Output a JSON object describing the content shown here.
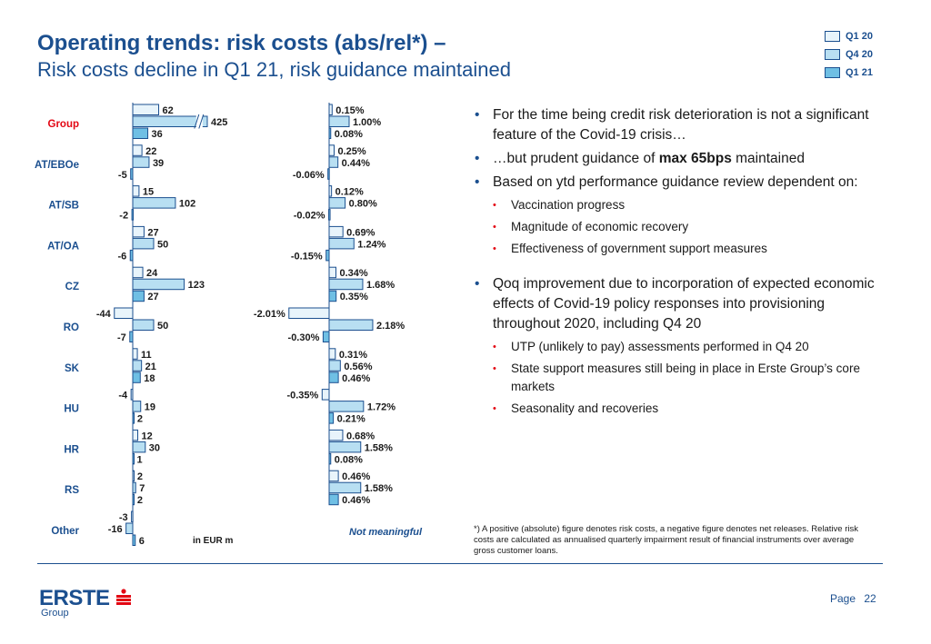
{
  "header": {
    "title": "Operating trends: risk costs (abs/rel*) –",
    "subtitle": "Risk costs decline in Q1 21, risk guidance maintained"
  },
  "legend": [
    {
      "label": "Q1 20",
      "color": "#e8f4fb"
    },
    {
      "label": "Q4 20",
      "color": "#b8dff2"
    },
    {
      "label": "Q1 21",
      "color": "#6fbfe4"
    }
  ],
  "chart_data": [
    {
      "type": "bar",
      "orientation": "horizontal",
      "unit_label": "in EUR m",
      "categories": [
        "Group",
        "AT/EBOe",
        "AT/SB",
        "AT/OA",
        "CZ",
        "RO",
        "SK",
        "HU",
        "HR",
        "RS",
        "Other"
      ],
      "highlight_category": "Group",
      "axis_break": {
        "category": "Group",
        "series": "Q4 20"
      },
      "series": [
        {
          "name": "Q1 20",
          "values": [
            62,
            22,
            15,
            27,
            24,
            -44,
            11,
            -4,
            12,
            2,
            -3
          ],
          "labels": [
            "62",
            "22",
            "15",
            "27",
            "24",
            "-44",
            "11",
            "-4",
            "12",
            "2",
            "-3"
          ]
        },
        {
          "name": "Q4 20",
          "values": [
            425,
            39,
            102,
            50,
            123,
            50,
            21,
            19,
            30,
            7,
            -16
          ],
          "labels": [
            "425",
            "39",
            "102",
            "50",
            "123",
            "50",
            "21",
            "19",
            "30",
            "7",
            "-16"
          ]
        },
        {
          "name": "Q1 21",
          "values": [
            36,
            -5,
            -2,
            -6,
            27,
            -7,
            18,
            2,
            1,
            2,
            6
          ],
          "labels": [
            "36",
            "-5",
            "-2",
            "-6",
            "27",
            "-7",
            "18",
            "2",
            "1",
            "2",
            "6"
          ]
        }
      ]
    },
    {
      "type": "bar",
      "orientation": "horizontal",
      "note": "Not meaningful",
      "categories": [
        "Group",
        "AT/EBOe",
        "AT/SB",
        "AT/OA",
        "CZ",
        "RO",
        "SK",
        "HU",
        "HR",
        "RS",
        "Other"
      ],
      "series": [
        {
          "name": "Q1 20",
          "values": [
            0.15,
            0.25,
            0.12,
            0.69,
            0.34,
            -2.01,
            0.31,
            -0.35,
            0.68,
            0.46,
            null
          ],
          "labels": [
            "0.15%",
            "0.25%",
            "0.12%",
            "0.69%",
            "0.34%",
            "-2.01%",
            "0.31%",
            "-0.35%",
            "0.68%",
            "0.46%",
            ""
          ]
        },
        {
          "name": "Q4 20",
          "values": [
            1.0,
            0.44,
            0.8,
            1.24,
            1.68,
            2.18,
            0.56,
            1.72,
            1.58,
            1.58,
            null
          ],
          "labels": [
            "1.00%",
            "0.44%",
            "0.80%",
            "1.24%",
            "1.68%",
            "2.18%",
            "0.56%",
            "1.72%",
            "1.58%",
            "1.58%",
            ""
          ]
        },
        {
          "name": "Q1 21",
          "values": [
            0.08,
            -0.06,
            -0.02,
            -0.15,
            0.35,
            -0.3,
            0.46,
            0.21,
            0.08,
            0.46,
            null
          ],
          "labels": [
            "0.08%",
            "-0.06%",
            "-0.02%",
            "-0.15%",
            "0.35%",
            "-0.30%",
            "0.46%",
            "0.21%",
            "0.08%",
            "0.46%",
            ""
          ]
        }
      ]
    }
  ],
  "bullets": {
    "b1": "For the time being credit risk deterioration is not a significant feature of the Covid-19 crisis…",
    "b2_pre": "…but prudent guidance of ",
    "b2_bold": "max 65bps",
    "b2_post": " maintained",
    "b3": "Based on ytd performance guidance review dependent on:",
    "b3_subs": [
      "Vaccination progress",
      "Magnitude of economic recovery",
      "Effectiveness of government support measures"
    ],
    "b4": "Qoq improvement due to incorporation of expected economic effects of Covid-19 policy responses into provisioning throughout 2020, including Q4 20",
    "b4_subs": [
      "UTP (unlikely to pay) assessments performed in Q4 20",
      "State support measures still being in place in Erste Group’s core markets",
      "Seasonality and recoveries"
    ]
  },
  "footnote": "*) A positive (absolute) figure denotes risk costs, a negative figure denotes net releases. Relative risk costs are calculated as annualised quarterly impairment result of financial instruments over average gross customer loans.",
  "footer": {
    "logo_text": "ERSTE",
    "logo_sub": "Group",
    "page_label": "Page",
    "page_number": "22"
  },
  "colors": {
    "brand_blue": "#1b4f8f",
    "accent_red": "#e30613",
    "bar_stroke": "#1b4f8f"
  }
}
